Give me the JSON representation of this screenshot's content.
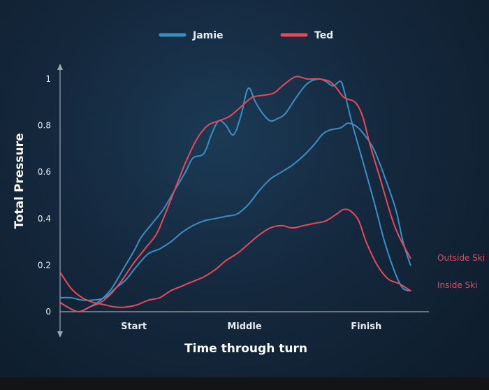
{
  "chart_data": {
    "type": "line",
    "xlabel": "Time through turn",
    "ylabel": "Total Pressure",
    "x_tick_labels": [
      {
        "label": "Start",
        "x": 0.2
      },
      {
        "label": "Middle",
        "x": 0.5
      },
      {
        "label": "Finish",
        "x": 0.83
      }
    ],
    "yticks": [
      "0",
      "0.2",
      "0.4",
      "0.6",
      "0.8",
      "1"
    ],
    "ylim": [
      0,
      1
    ],
    "xlim": [
      0,
      1
    ],
    "grid": false,
    "legend_position": "top",
    "annotations": [
      "Outside Ski",
      "Inside Ski"
    ],
    "series": [
      {
        "name": "Jamie",
        "ski": "Outside Ski",
        "color": "#3a8fc4",
        "points": [
          [
            0.0,
            0.04
          ],
          [
            0.02,
            0.02
          ],
          [
            0.05,
            0.0
          ],
          [
            0.08,
            0.02
          ],
          [
            0.11,
            0.05
          ],
          [
            0.14,
            0.1
          ],
          [
            0.17,
            0.18
          ],
          [
            0.2,
            0.26
          ],
          [
            0.22,
            0.32
          ],
          [
            0.25,
            0.38
          ],
          [
            0.28,
            0.44
          ],
          [
            0.31,
            0.52
          ],
          [
            0.34,
            0.6
          ],
          [
            0.36,
            0.66
          ],
          [
            0.39,
            0.68
          ],
          [
            0.41,
            0.76
          ],
          [
            0.43,
            0.82
          ],
          [
            0.45,
            0.8
          ],
          [
            0.47,
            0.76
          ],
          [
            0.49,
            0.84
          ],
          [
            0.51,
            0.96
          ],
          [
            0.53,
            0.9
          ],
          [
            0.55,
            0.85
          ],
          [
            0.57,
            0.82
          ],
          [
            0.59,
            0.83
          ],
          [
            0.61,
            0.85
          ],
          [
            0.64,
            0.92
          ],
          [
            0.67,
            0.98
          ],
          [
            0.7,
            1.0
          ],
          [
            0.72,
            0.99
          ],
          [
            0.74,
            0.97
          ],
          [
            0.76,
            0.99
          ],
          [
            0.77,
            0.95
          ],
          [
            0.79,
            0.82
          ],
          [
            0.82,
            0.65
          ],
          [
            0.85,
            0.48
          ],
          [
            0.88,
            0.3
          ],
          [
            0.91,
            0.16
          ],
          [
            0.93,
            0.1
          ],
          [
            0.95,
            0.09
          ]
        ]
      },
      {
        "name": "Jamie",
        "ski": "Inside Ski",
        "color": "#3a8fc4",
        "points": [
          [
            0.0,
            0.06
          ],
          [
            0.03,
            0.06
          ],
          [
            0.06,
            0.05
          ],
          [
            0.09,
            0.05
          ],
          [
            0.12,
            0.06
          ],
          [
            0.15,
            0.1
          ],
          [
            0.18,
            0.14
          ],
          [
            0.21,
            0.2
          ],
          [
            0.24,
            0.25
          ],
          [
            0.27,
            0.27
          ],
          [
            0.3,
            0.3
          ],
          [
            0.33,
            0.34
          ],
          [
            0.36,
            0.37
          ],
          [
            0.39,
            0.39
          ],
          [
            0.42,
            0.4
          ],
          [
            0.45,
            0.41
          ],
          [
            0.48,
            0.42
          ],
          [
            0.51,
            0.46
          ],
          [
            0.54,
            0.52
          ],
          [
            0.57,
            0.57
          ],
          [
            0.6,
            0.6
          ],
          [
            0.63,
            0.63
          ],
          [
            0.66,
            0.67
          ],
          [
            0.69,
            0.72
          ],
          [
            0.71,
            0.76
          ],
          [
            0.73,
            0.78
          ],
          [
            0.76,
            0.79
          ],
          [
            0.78,
            0.81
          ],
          [
            0.8,
            0.8
          ],
          [
            0.82,
            0.77
          ],
          [
            0.85,
            0.7
          ],
          [
            0.88,
            0.58
          ],
          [
            0.91,
            0.44
          ],
          [
            0.93,
            0.3
          ],
          [
            0.95,
            0.2
          ]
        ]
      },
      {
        "name": "Ted",
        "ski": "Outside Ski",
        "color": "#e8495a",
        "points": [
          [
            0.0,
            0.04
          ],
          [
            0.02,
            0.02
          ],
          [
            0.05,
            0.0
          ],
          [
            0.08,
            0.02
          ],
          [
            0.11,
            0.04
          ],
          [
            0.14,
            0.08
          ],
          [
            0.17,
            0.14
          ],
          [
            0.2,
            0.21
          ],
          [
            0.23,
            0.27
          ],
          [
            0.26,
            0.33
          ],
          [
            0.28,
            0.4
          ],
          [
            0.31,
            0.52
          ],
          [
            0.34,
            0.64
          ],
          [
            0.37,
            0.74
          ],
          [
            0.4,
            0.8
          ],
          [
            0.43,
            0.82
          ],
          [
            0.46,
            0.84
          ],
          [
            0.49,
            0.88
          ],
          [
            0.52,
            0.92
          ],
          [
            0.55,
            0.93
          ],
          [
            0.58,
            0.94
          ],
          [
            0.61,
            0.98
          ],
          [
            0.64,
            1.01
          ],
          [
            0.67,
            1.0
          ],
          [
            0.7,
            1.0
          ],
          [
            0.73,
            0.99
          ],
          [
            0.75,
            0.96
          ],
          [
            0.77,
            0.92
          ],
          [
            0.8,
            0.9
          ],
          [
            0.82,
            0.84
          ],
          [
            0.84,
            0.72
          ],
          [
            0.87,
            0.56
          ],
          [
            0.9,
            0.4
          ],
          [
            0.92,
            0.32
          ],
          [
            0.95,
            0.23
          ]
        ]
      },
      {
        "name": "Ted",
        "ski": "Inside Ski",
        "color": "#e8495a",
        "points": [
          [
            0.0,
            0.17
          ],
          [
            0.03,
            0.1
          ],
          [
            0.06,
            0.06
          ],
          [
            0.09,
            0.04
          ],
          [
            0.12,
            0.03
          ],
          [
            0.15,
            0.02
          ],
          [
            0.18,
            0.02
          ],
          [
            0.21,
            0.03
          ],
          [
            0.24,
            0.05
          ],
          [
            0.27,
            0.06
          ],
          [
            0.3,
            0.09
          ],
          [
            0.33,
            0.11
          ],
          [
            0.36,
            0.13
          ],
          [
            0.39,
            0.15
          ],
          [
            0.42,
            0.18
          ],
          [
            0.45,
            0.22
          ],
          [
            0.48,
            0.25
          ],
          [
            0.51,
            0.29
          ],
          [
            0.54,
            0.33
          ],
          [
            0.57,
            0.36
          ],
          [
            0.6,
            0.37
          ],
          [
            0.63,
            0.36
          ],
          [
            0.66,
            0.37
          ],
          [
            0.69,
            0.38
          ],
          [
            0.72,
            0.39
          ],
          [
            0.75,
            0.42
          ],
          [
            0.77,
            0.44
          ],
          [
            0.79,
            0.43
          ],
          [
            0.81,
            0.39
          ],
          [
            0.83,
            0.3
          ],
          [
            0.86,
            0.2
          ],
          [
            0.89,
            0.14
          ],
          [
            0.92,
            0.12
          ],
          [
            0.95,
            0.09
          ]
        ]
      }
    ],
    "legend": [
      {
        "name": "Jamie",
        "color": "#3a8fc4"
      },
      {
        "name": "Ted",
        "color": "#e8495a"
      }
    ]
  }
}
